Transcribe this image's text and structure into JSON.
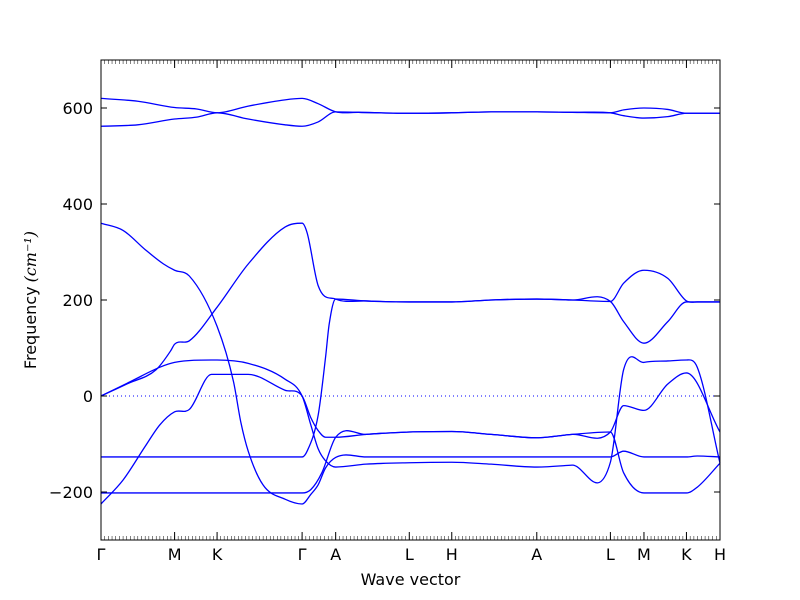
{
  "chart_data": {
    "type": "line",
    "title": "",
    "xlabel": "Wave vector",
    "ylabel": "Frequency",
    "ylabel_unit": "(cm⁻¹)",
    "ylim": [
      -300,
      700
    ],
    "yticks": [
      -200,
      0,
      200,
      400,
      600
    ],
    "ytick_labels": [
      "−200",
      "0",
      "200",
      "400",
      "600"
    ],
    "zero_line": true,
    "line_color": "#0000ff",
    "xticks": [
      {
        "label": "Γ",
        "x": 0.0
      },
      {
        "label": "M",
        "x": 1.0
      },
      {
        "label": "K",
        "x": 1.577
      },
      {
        "label": "Γ",
        "x": 2.732
      },
      {
        "label": "A",
        "x": 3.188
      },
      {
        "label": "L",
        "x": 4.188
      },
      {
        "label": "H",
        "x": 4.765
      },
      {
        "label": "A",
        "x": 5.92
      },
      {
        "label": "L",
        "x": 6.92
      },
      {
        "label": "M",
        "x": 7.376
      },
      {
        "label": "K",
        "x": 7.953
      },
      {
        "label": "H",
        "x": 8.409
      }
    ],
    "xlim": [
      0,
      8.409
    ],
    "series": [
      {
        "x": [
          0,
          0.5,
          1.0,
          1.3,
          1.577,
          2.0,
          2.5,
          2.732,
          2.95,
          3.188,
          3.5,
          4.188,
          4.765,
          5.3,
          5.92,
          6.4,
          6.92,
          7.1,
          7.376,
          7.7,
          7.953,
          8.409
        ],
        "y": [
          620,
          614,
          601,
          598,
          590,
          604,
          617,
          620,
          609,
          592,
          591,
          589,
          590,
          592,
          592,
          591,
          590,
          596,
          600,
          597,
          589,
          589
        ]
      },
      {
        "x": [
          0,
          0.5,
          1.0,
          1.3,
          1.577,
          2.0,
          2.5,
          2.732,
          2.95,
          3.188,
          3.5,
          4.188,
          4.765,
          5.3,
          5.92,
          6.4,
          6.92,
          7.1,
          7.376,
          7.7,
          7.953,
          8.409
        ],
        "y": [
          562,
          565,
          577,
          581,
          590,
          577,
          565,
          562,
          571,
          592,
          591,
          589,
          590,
          592,
          592,
          591,
          590,
          584,
          579,
          582,
          589,
          589
        ]
      },
      {
        "x": [
          0,
          0.3,
          0.6,
          0.8,
          1.0,
          1.2,
          1.5,
          2.0,
          2.5,
          2.732,
          2.85,
          2.95,
          3.05,
          3.188,
          3.6,
          4.188,
          4.765,
          5.3,
          5.92,
          6.4,
          6.92,
          7.1,
          7.376,
          7.7,
          7.953,
          8.409
        ],
        "y": [
          -225,
          -175,
          -105,
          -60,
          -33,
          -28,
          45,
          45,
          12,
          0,
          -45,
          -72,
          -86,
          -86,
          -80,
          -75,
          -74,
          -80,
          -87,
          -80,
          -75,
          -20,
          -30,
          25,
          48,
          -75
        ]
      },
      {
        "x": [
          0,
          0.4,
          0.8,
          1.0,
          1.577,
          2.0,
          2.5,
          2.732,
          2.85,
          2.95,
          3.05,
          3.188,
          3.6,
          4.188,
          4.765,
          5.3,
          5.92,
          6.4,
          6.92,
          7.1,
          7.376,
          7.7,
          7.953,
          8.1,
          8.409
        ],
        "y": [
          0,
          30,
          60,
          70,
          75,
          68,
          35,
          0,
          -60,
          -110,
          -135,
          -148,
          -142,
          -139,
          -138,
          -142,
          -148,
          -144,
          -138,
          55,
          70,
          73,
          75,
          60,
          -140
        ]
      },
      {
        "x": [
          0,
          0.35,
          0.75,
          0.95,
          1.0,
          1.2,
          1.577,
          2.0,
          2.5,
          2.732,
          2.8,
          2.95,
          3.188,
          3.6,
          4.188,
          4.765,
          5.3,
          5.92,
          6.4,
          6.92,
          7.1,
          7.376,
          7.7,
          7.953,
          8.1,
          8.409
        ],
        "y": [
          0,
          25,
          55,
          95,
          108,
          115,
          185,
          275,
          352,
          360,
          340,
          230,
          202,
          198,
          196,
          196,
          200,
          202,
          200,
          197,
          235,
          262,
          245,
          198,
          196,
          196
        ]
      },
      {
        "x": [
          0,
          0.3,
          0.6,
          0.85,
          1.0,
          1.2,
          1.577,
          1.8,
          1.9,
          2.0,
          2.2,
          2.5,
          2.732,
          2.85,
          2.95,
          3.05,
          3.188,
          3.6,
          4.188,
          4.765,
          5.3,
          5.92,
          6.4,
          6.92,
          7.1,
          7.376,
          7.7,
          7.953,
          8.1,
          8.409
        ],
        "y": [
          360,
          345,
          305,
          275,
          262,
          250,
          145,
          30,
          -55,
          -115,
          -185,
          -215,
          -225,
          -205,
          -185,
          -150,
          -128,
          -127,
          -127,
          -127,
          -127,
          -127,
          -127,
          -127,
          -115,
          -127,
          -127,
          -127,
          -125,
          -127
        ]
      },
      {
        "x": [
          0,
          1.0,
          1.577,
          2.0,
          2.5,
          2.732,
          2.8,
          2.95,
          3.05,
          3.1,
          3.188,
          3.6,
          4.188,
          4.765,
          5.3,
          5.92,
          6.4,
          6.92,
          7.1,
          7.376,
          7.7,
          7.953,
          8.1,
          8.409
        ],
        "y": [
          -127,
          -127,
          -127,
          -127,
          -127,
          -127,
          -115,
          -40,
          80,
          150,
          202,
          198,
          196,
          196,
          200,
          202,
          200,
          197,
          155,
          110,
          155,
          196,
          196,
          196
        ]
      },
      {
        "x": [
          0,
          1.0,
          1.577,
          2.0,
          2.5,
          2.732,
          2.85,
          3.0,
          3.188,
          3.6,
          4.188,
          4.765,
          5.3,
          5.92,
          6.4,
          6.92,
          7.1,
          7.376,
          7.7,
          7.953,
          8.1,
          8.409
        ],
        "y": [
          -202,
          -202,
          -202,
          -202,
          -202,
          -202,
          -195,
          -160,
          -86,
          -80,
          -75,
          -74,
          -80,
          -87,
          -80,
          -75,
          -160,
          -202,
          -202,
          -202,
          -190,
          -140
        ]
      }
    ]
  }
}
